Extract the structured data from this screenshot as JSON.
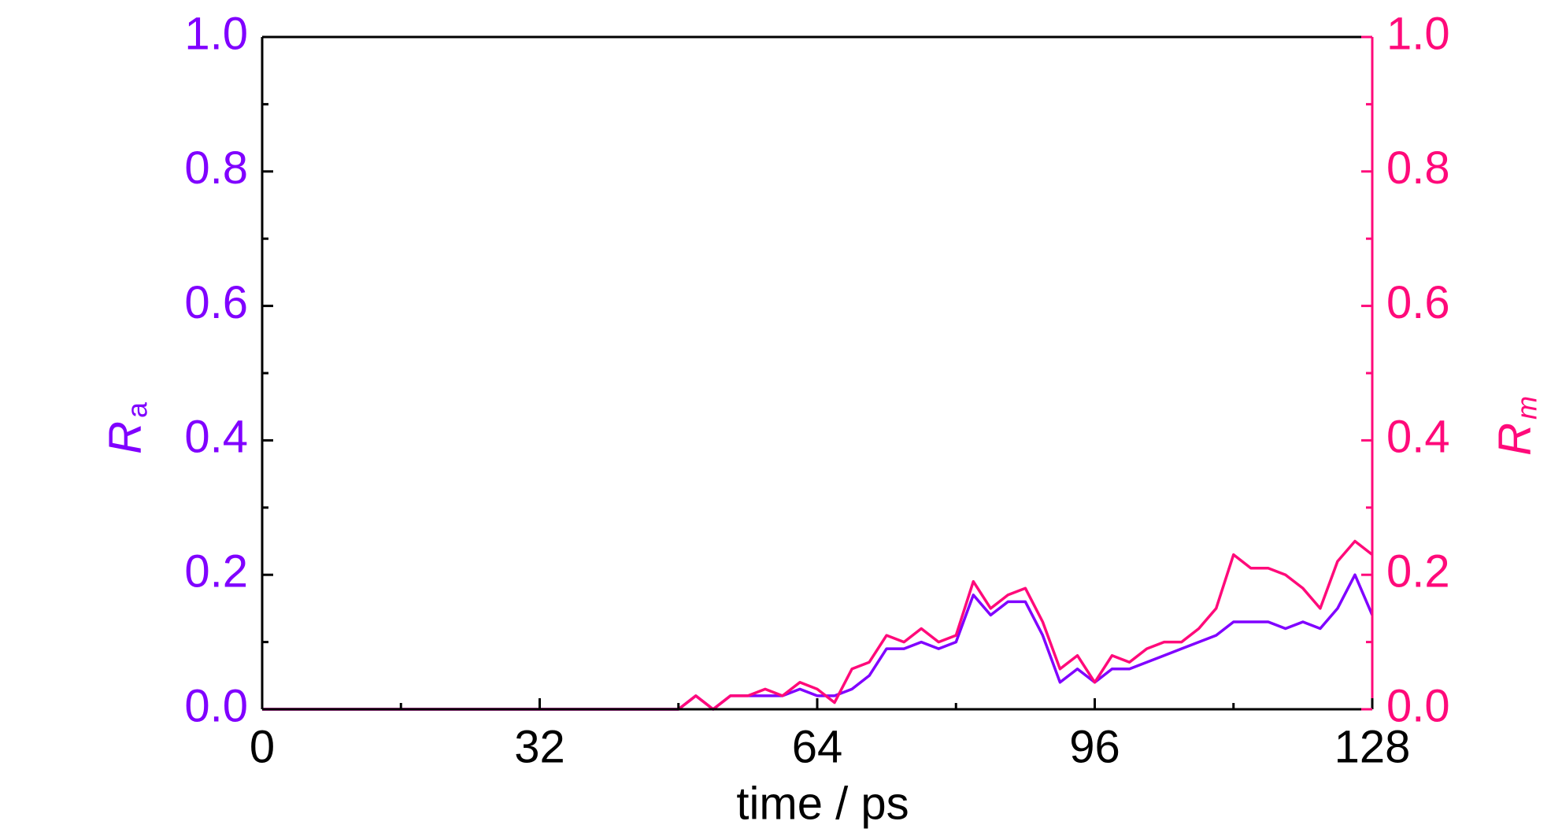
{
  "chart_data": {
    "type": "line",
    "xlabel": "time / ps",
    "ylabel": "R",
    "ylabel_subscript": "a",
    "y2label": "R",
    "y2label_subscript": "m",
    "x": [
      0,
      2,
      4,
      6,
      8,
      10,
      12,
      14,
      16,
      18,
      20,
      22,
      24,
      26,
      28,
      30,
      32,
      34,
      36,
      38,
      40,
      42,
      44,
      46,
      48,
      50,
      52,
      54,
      56,
      58,
      60,
      62,
      64,
      66,
      68,
      70,
      72,
      74,
      76,
      78,
      80,
      82,
      84,
      86,
      88,
      90,
      92,
      94,
      96,
      98,
      100,
      102,
      104,
      106,
      108,
      110,
      112,
      114,
      116,
      118,
      120,
      122,
      124,
      126,
      128
    ],
    "series": [
      {
        "name": "Ra",
        "color": "#8000ff",
        "axis": "y",
        "values": [
          0,
          0,
          0,
          0,
          0,
          0,
          0,
          0,
          0,
          0,
          0,
          0,
          0,
          0,
          0,
          0,
          0,
          0,
          0,
          0,
          0,
          0,
          0,
          0,
          0,
          0.02,
          0,
          0.02,
          0.02,
          0.02,
          0.02,
          0.03,
          0.02,
          0.02,
          0.03,
          0.05,
          0.09,
          0.09,
          0.1,
          0.09,
          0.1,
          0.17,
          0.14,
          0.16,
          0.16,
          0.11,
          0.04,
          0.06,
          0.04,
          0.06,
          0.06,
          0.07,
          0.08,
          0.09,
          0.1,
          0.11,
          0.13,
          0.13,
          0.13,
          0.12,
          0.13,
          0.12,
          0.15,
          0.2,
          0.14
        ]
      },
      {
        "name": "Rm",
        "color": "#ff0a7a",
        "axis": "y2",
        "values": [
          0,
          0,
          0,
          0,
          0,
          0,
          0,
          0,
          0,
          0,
          0,
          0,
          0,
          0,
          0,
          0,
          0,
          0,
          0,
          0,
          0,
          0,
          0,
          0,
          0,
          0.02,
          0,
          0.02,
          0.02,
          0.03,
          0.02,
          0.04,
          0.03,
          0.01,
          0.06,
          0.07,
          0.11,
          0.1,
          0.12,
          0.1,
          0.11,
          0.19,
          0.15,
          0.17,
          0.18,
          0.13,
          0.06,
          0.08,
          0.04,
          0.08,
          0.07,
          0.09,
          0.1,
          0.1,
          0.12,
          0.15,
          0.23,
          0.21,
          0.21,
          0.2,
          0.18,
          0.15,
          0.22,
          0.25,
          0.23
        ]
      }
    ],
    "xlim": [
      0,
      128
    ],
    "xticks": [
      0,
      32,
      64,
      96,
      128
    ],
    "xminorticks": [
      16,
      48,
      80,
      112
    ],
    "ylim": [
      0,
      1
    ],
    "yticks": [
      {
        "value": 0,
        "label": "0.0"
      },
      0.2,
      0.4,
      0.6,
      0.8,
      {
        "value": 1,
        "label": "1.0"
      }
    ],
    "yminorticks": [
      0.1,
      0.3,
      0.5,
      0.7,
      0.9
    ],
    "y2lim": [
      0,
      1
    ],
    "y2ticks": [
      {
        "value": 0,
        "label": "0.0"
      },
      0.2,
      0.4,
      0.6,
      0.8,
      {
        "value": 1,
        "label": "1.0"
      }
    ],
    "y2minorticks": [
      0.1,
      0.3,
      0.5,
      0.7,
      0.9
    ],
    "grid": false
  }
}
